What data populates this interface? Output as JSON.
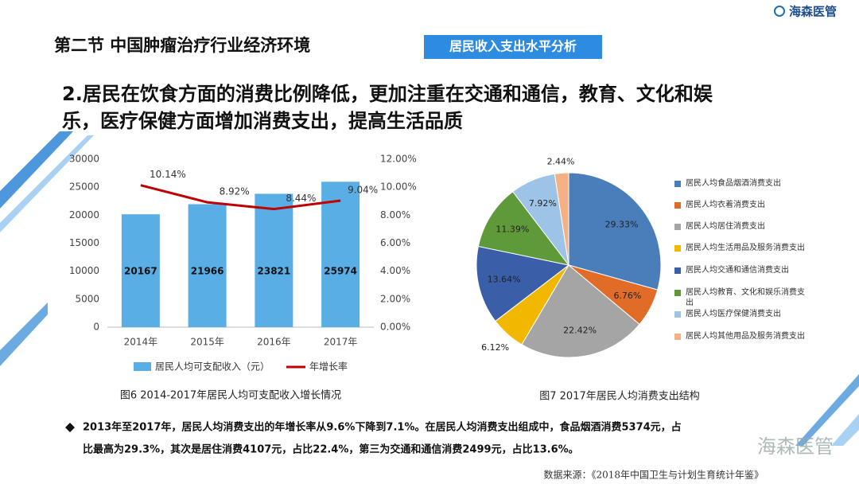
{
  "header": {
    "title": "第二节 中国肿瘤治疗行业经济环境",
    "section_tag": "居民收入支出水平分析",
    "logo": "海森医管"
  },
  "headline": [
    "2.居民在饮食方面的消费比例降低，更加注重在交通和通信，教育、文化和娱",
    "乐，医疗保健方面增加消费支出，提高生活品质"
  ],
  "chart_data": [
    {
      "type": "bar",
      "title": "图6 2014-2017年居民人均可支配收入增长情况",
      "categories": [
        "2014年",
        "2015年",
        "2016年",
        "2017年"
      ],
      "series": [
        {
          "name": "居民人均可支配收入（元）",
          "color": "#5aaee6",
          "values": [
            20167,
            21966,
            23821,
            25974
          ]
        },
        {
          "name": "年增长率",
          "type": "line",
          "axis": "y2",
          "color": "#c00000",
          "values": [
            10.14,
            8.92,
            8.44,
            9.04
          ],
          "value_labels": [
            "10.14%",
            "8.92%",
            "8.44%",
            "9.04%"
          ]
        }
      ],
      "ylim": [
        0,
        30000
      ],
      "yticks": [
        0,
        5000,
        10000,
        15000,
        20000,
        25000,
        30000
      ],
      "y2lim": [
        0,
        12
      ],
      "y2ticks": [
        {
          "value": 0,
          "label": "0.00%"
        },
        {
          "value": 2,
          "label": "2.00%"
        },
        {
          "value": 4,
          "label": "4.00%"
        },
        {
          "value": 6,
          "label": "6.00%"
        },
        {
          "value": 8,
          "label": "8.00%"
        },
        {
          "value": 10,
          "label": "10.00%"
        },
        {
          "value": 12,
          "label": "12.00%"
        }
      ],
      "grid": false
    },
    {
      "type": "pie",
      "title": "图7 2017年居民人均消费支出结构",
      "categories": [
        "居民人均食品烟酒消费支出",
        "居民人均衣着消费支出",
        "居民人均居住消费支出",
        "居民人均生活用品及服务消费支出",
        "居民人均交通和通信消费支出",
        "居民人均教育、文化和娱乐消费支出",
        "居民人均医疗保健消费支出",
        "居民人均其他用品及服务消费支出"
      ],
      "values": [
        29.33,
        6.76,
        22.42,
        6.12,
        13.64,
        11.39,
        7.92,
        2.44
      ],
      "value_labels": [
        "29.33%",
        "6.76%",
        "22.42%",
        "6.12%",
        "13.64%",
        "11.39%",
        "7.92%",
        "2.44%"
      ],
      "colors": [
        "#4a7ebb",
        "#e06c28",
        "#a5a5a5",
        "#f2b800",
        "#3b5ea8",
        "#5f9a3a",
        "#9dc3e6",
        "#f4b183"
      ]
    }
  ],
  "summary": [
    "2013年至2017年，居民人均消费支出的年增长率从9.6%下降到7.1%。在居民人均消费支出组成中，食品烟酒消费5374元，占",
    "比最高为29.3%，其次是居住消费4107元，占比22.4%，第三为交通和通信消费2499元，占比13.6%。"
  ],
  "source": "数据来源：《2018年中国卫生与计划生育统计年鉴》",
  "watermark": "海森医管"
}
